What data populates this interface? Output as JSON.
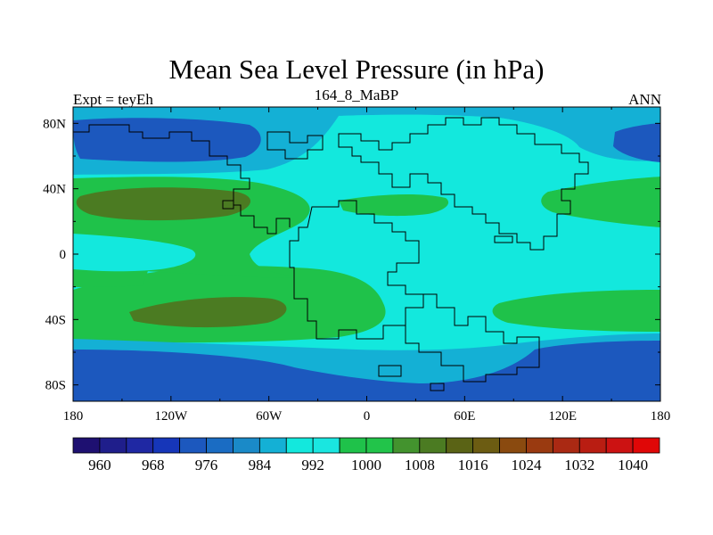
{
  "title": "Mean Sea Level Pressure (in hPa)",
  "subtitle_left": "Expt = teyEh",
  "subtitle_center": "164_8_MaBP",
  "subtitle_right": "ANN",
  "map": {
    "projection": "cylindrical equidistant",
    "lon_range": [
      -180,
      180
    ],
    "lat_range": [
      -90,
      90
    ],
    "x_ticks": [
      {
        "value": -180,
        "label": "180"
      },
      {
        "value": -120,
        "label": "120W"
      },
      {
        "value": -60,
        "label": "60W"
      },
      {
        "value": 0,
        "label": "0"
      },
      {
        "value": 60,
        "label": "60E"
      },
      {
        "value": 120,
        "label": "120E"
      },
      {
        "value": 180,
        "label": "180"
      }
    ],
    "y_ticks": [
      {
        "value": 80,
        "label": "80N"
      },
      {
        "value": 40,
        "label": "40N"
      },
      {
        "value": 0,
        "label": "0"
      },
      {
        "value": -40,
        "label": "40S"
      },
      {
        "value": -80,
        "label": "80S"
      }
    ]
  },
  "colorbar": {
    "labels": [
      "960",
      "968",
      "976",
      "984",
      "992",
      "1000",
      "1008",
      "1016",
      "1024",
      "1032",
      "1040"
    ],
    "colors": [
      "#1e1071",
      "#1f1e8b",
      "#1f28a3",
      "#1636b9",
      "#1c58be",
      "#1a6cc3",
      "#1a8ac8",
      "#14b0d5",
      "#13e8dd",
      "#1ae6e0",
      "#1fc24a",
      "#22c44a",
      "#43932e",
      "#4b7b22",
      "#5a6315",
      "#6c5c12",
      "#8a4a0f",
      "#9a3a10",
      "#aa2913",
      "#b91d12",
      "#cc1212",
      "#e00707"
    ]
  }
}
